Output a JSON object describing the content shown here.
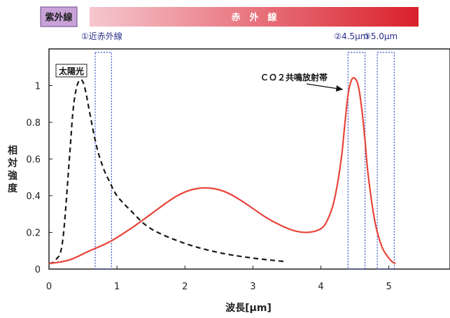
{
  "bands": {
    "uv_label": "紫外線",
    "ir_label": "赤　外　線",
    "uv_color": "#c9a2d8",
    "ir_gradient": [
      "#f6c7cf",
      "#d9202b"
    ]
  },
  "windows": [
    {
      "label": "①近赤外線",
      "x0": 0.68,
      "x1": 0.92
    },
    {
      "label": "②4.5μm",
      "x0": 4.4,
      "x1": 4.65
    },
    {
      "label": "③5.0μm",
      "x0": 4.83,
      "x1": 5.08
    }
  ],
  "annotations": {
    "sun": "太陽光",
    "co2": "ＣＯ２共鳴放射帯"
  },
  "chart_data": {
    "type": "line",
    "xlabel": "波長[μm]",
    "ylabel": "相対強度",
    "xlim": [
      0,
      5.9
    ],
    "ylim": [
      0,
      1.2
    ],
    "x_ticks": [
      0,
      1,
      2,
      3,
      4,
      5
    ],
    "y_ticks": [
      0,
      0.2,
      0.4,
      0.6,
      0.8,
      1.0
    ],
    "series": [
      {
        "style": "dashed",
        "color": "#1a1a1a",
        "x": [
          0.0,
          0.1,
          0.2,
          0.3,
          0.35,
          0.4,
          0.45,
          0.5,
          0.55,
          0.6,
          0.7,
          0.8,
          0.9,
          1.0,
          1.2,
          1.5,
          2.0,
          2.5,
          3.0,
          3.5
        ],
        "y": [
          0.03,
          0.05,
          0.15,
          0.6,
          0.85,
          0.98,
          1.03,
          1.02,
          0.95,
          0.85,
          0.67,
          0.55,
          0.47,
          0.4,
          0.32,
          0.22,
          0.14,
          0.09,
          0.06,
          0.04
        ]
      },
      {
        "style": "solid",
        "color": "#e8443a",
        "x": [
          0.0,
          0.3,
          0.6,
          0.9,
          1.2,
          1.5,
          1.8,
          2.0,
          2.2,
          2.4,
          2.6,
          2.8,
          3.0,
          3.2,
          3.4,
          3.6,
          3.8,
          4.0,
          4.1,
          4.2,
          4.3,
          4.35,
          4.4,
          4.45,
          4.5,
          4.55,
          4.6,
          4.65,
          4.7,
          4.8,
          4.9,
          5.0,
          5.05,
          5.1
        ],
        "y": [
          0.03,
          0.05,
          0.1,
          0.15,
          0.22,
          0.3,
          0.38,
          0.42,
          0.44,
          0.44,
          0.42,
          0.38,
          0.33,
          0.28,
          0.24,
          0.21,
          0.2,
          0.22,
          0.27,
          0.38,
          0.6,
          0.78,
          0.95,
          1.03,
          1.04,
          1.0,
          0.88,
          0.7,
          0.5,
          0.25,
          0.12,
          0.06,
          0.04,
          0.03
        ]
      }
    ]
  }
}
